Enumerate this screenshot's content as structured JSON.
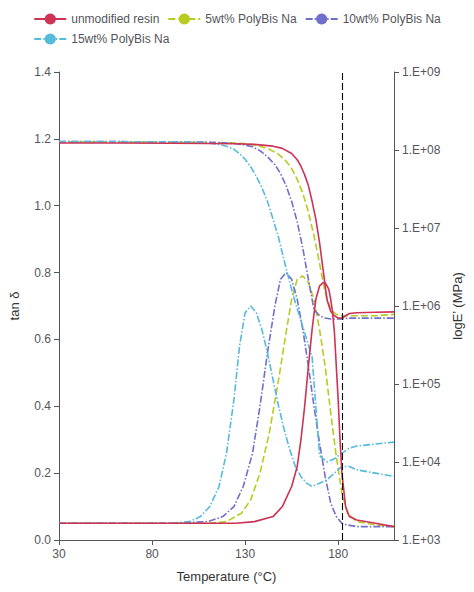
{
  "chart_data": {
    "type": "line",
    "xlabel": "Temperature (°C)",
    "ylabel": "tan δ",
    "y2label": "logE’ (MPa)",
    "xlim": [
      30,
      210
    ],
    "xticks": [
      30,
      80,
      130,
      180
    ],
    "ylim": [
      0.0,
      1.4
    ],
    "yticks": [
      {
        "value": 0,
        "label": "0.0"
      },
      0.2,
      0.4,
      0.6,
      0.8,
      {
        "value": 1,
        "label": "1.0"
      },
      1.2,
      1.4
    ],
    "y2lim": [
      1000,
      1000000000
    ],
    "y2ticks": [
      {
        "value": 1000,
        "label": "1.E+03"
      },
      {
        "value": 10000,
        "label": "1.E+04"
      },
      {
        "value": 100000,
        "label": "1.E+05"
      },
      {
        "value": 1000000,
        "label": "1.E+06"
      },
      {
        "value": 10000000,
        "label": "1.E+07"
      },
      {
        "value": 100000000,
        "label": "1.E+08"
      },
      {
        "value": 1000000000,
        "label": "1.E+09"
      }
    ],
    "log": "y2",
    "grid": false,
    "legend": "top",
    "reference_line": {
      "x": 182,
      "color": "#000000",
      "line_style": "dashed"
    },
    "series": [
      {
        "name": "unmodified resin",
        "color": "#cc3355",
        "line_style": "solid",
        "x": [
          30,
          60,
          90,
          110,
          125,
          135,
          145,
          150,
          155,
          158,
          160,
          162,
          164,
          166,
          168,
          170,
          172,
          173,
          174,
          175,
          176,
          177,
          178,
          179,
          180,
          181,
          182,
          184,
          186,
          190,
          200,
          210
        ],
        "values": [
          0.05,
          0.05,
          0.05,
          0.05,
          0.05,
          0.055,
          0.07,
          0.1,
          0.16,
          0.22,
          0.3,
          0.4,
          0.52,
          0.63,
          0.72,
          0.76,
          0.77,
          0.77,
          0.76,
          0.75,
          0.72,
          0.68,
          0.62,
          0.52,
          0.42,
          0.3,
          0.2,
          0.1,
          0.07,
          0.06,
          0.05,
          0.04
        ]
      },
      {
        "name": "unmodified resin",
        "color": "#cc3355",
        "line_style": "solid",
        "axis": "y2",
        "x": [
          30,
          60,
          90,
          110,
          125,
          135,
          145,
          150,
          155,
          158,
          160,
          162,
          164,
          166,
          168,
          170,
          172,
          174,
          176,
          178,
          180,
          182,
          184,
          186,
          190,
          200,
          210
        ],
        "values": [
          123000000.0,
          123000000.0,
          122000000.0,
          121000000.0,
          120000000.0,
          118000000.0,
          112000000.0,
          105000000.0,
          90000000.0,
          75000000.0,
          62000000.0,
          48000000.0,
          35000000.0,
          22000000.0,
          13000000.0,
          6500000.0,
          2800000.0,
          1200000.0,
          850000.0,
          750000.0,
          700000.0,
          700000.0,
          750000.0,
          800000.0,
          820000.0,
          830000.0,
          840000.0
        ]
      },
      {
        "name": "5wt% PolyBis Na",
        "color": "#b8cc20",
        "line_style": "dashed",
        "x": [
          30,
          60,
          90,
          110,
          120,
          128,
          133,
          138,
          143,
          148,
          152,
          155,
          158,
          161,
          164,
          167,
          170,
          173,
          176,
          179,
          182,
          185,
          190,
          200,
          210
        ],
        "values": [
          0.05,
          0.05,
          0.05,
          0.05,
          0.055,
          0.08,
          0.12,
          0.2,
          0.32,
          0.48,
          0.62,
          0.72,
          0.78,
          0.79,
          0.77,
          0.72,
          0.63,
          0.52,
          0.38,
          0.25,
          0.14,
          0.08,
          0.055,
          0.045,
          0.04
        ]
      },
      {
        "name": "5wt% PolyBis Na",
        "color": "#b8cc20",
        "line_style": "dashed",
        "axis": "y2",
        "x": [
          30,
          60,
          90,
          110,
          120,
          128,
          133,
          138,
          143,
          148,
          152,
          155,
          158,
          161,
          164,
          167,
          170,
          173,
          176,
          179,
          182,
          185,
          190,
          200,
          210
        ],
        "values": [
          127000000.0,
          127000000.0,
          126000000.0,
          125000000.0,
          124000000.0,
          122000000.0,
          118000000.0,
          112000000.0,
          102000000.0,
          88000000.0,
          72000000.0,
          58000000.0,
          42000000.0,
          28000000.0,
          16000000.0,
          8000000.0,
          3500000.0,
          1500000.0,
          900000.0,
          780000.0,
          750000.0,
          750000.0,
          750000.0,
          750000.0,
          780000.0
        ]
      },
      {
        "name": "10wt% PolyBis Na",
        "color": "#7070cc",
        "line_style": "dashdot",
        "x": [
          30,
          60,
          90,
          110,
          118,
          124,
          129,
          134,
          138,
          142,
          146,
          149,
          152,
          155,
          158,
          161,
          164,
          167,
          170,
          173,
          176,
          179,
          182,
          185,
          190,
          200,
          210
        ],
        "values": [
          0.05,
          0.05,
          0.05,
          0.055,
          0.07,
          0.1,
          0.16,
          0.26,
          0.4,
          0.56,
          0.7,
          0.78,
          0.8,
          0.78,
          0.72,
          0.63,
          0.52,
          0.4,
          0.29,
          0.19,
          0.11,
          0.07,
          0.05,
          0.045,
          0.04,
          0.04,
          0.04
        ]
      },
      {
        "name": "10wt% PolyBis Na",
        "color": "#7070cc",
        "line_style": "dashdot",
        "axis": "y2",
        "x": [
          30,
          60,
          90,
          110,
          118,
          124,
          129,
          134,
          138,
          142,
          146,
          149,
          152,
          155,
          158,
          161,
          164,
          167,
          170,
          173,
          176,
          179,
          182,
          185,
          190,
          200,
          210
        ],
        "values": [
          128000000.0,
          128000000.0,
          127000000.0,
          126000000.0,
          124000000.0,
          121000000.0,
          117000000.0,
          110000000.0,
          98000000.0,
          82000000.0,
          65000000.0,
          50000000.0,
          35000000.0,
          22000000.0,
          12000000.0,
          5500000.0,
          2200000.0,
          900000.0,
          750000.0,
          700000.0,
          680000.0,
          680000.0,
          680000.0,
          700000.0,
          700000.0,
          700000.0,
          700000.0
        ]
      },
      {
        "name": "15wt% PolyBis Na",
        "color": "#55bbdd",
        "line_style": "dashdot",
        "x": [
          30,
          60,
          90,
          100,
          106,
          111,
          116,
          120,
          124,
          127,
          130,
          133,
          136,
          139,
          142,
          145,
          148,
          151,
          154,
          157,
          160,
          163,
          166,
          170,
          174,
          178,
          182,
          186,
          190,
          200,
          210
        ],
        "values": [
          0.05,
          0.05,
          0.05,
          0.055,
          0.07,
          0.1,
          0.16,
          0.26,
          0.42,
          0.58,
          0.68,
          0.7,
          0.68,
          0.63,
          0.56,
          0.48,
          0.4,
          0.33,
          0.27,
          0.22,
          0.19,
          0.17,
          0.16,
          0.17,
          0.18,
          0.2,
          0.22,
          0.22,
          0.21,
          0.2,
          0.19
        ]
      },
      {
        "name": "15wt% PolyBis Na",
        "color": "#55bbdd",
        "line_style": "dashdot",
        "axis": "y2",
        "x": [
          30,
          60,
          90,
          100,
          106,
          111,
          116,
          120,
          124,
          127,
          130,
          133,
          136,
          139,
          142,
          145,
          148,
          151,
          154,
          157,
          160,
          163,
          166,
          170,
          174,
          178,
          182,
          186,
          190,
          200,
          210
        ],
        "values": [
          128000000.0,
          128000000.0,
          127000000.0,
          126000000.0,
          125000000.0,
          122000000.0,
          118000000.0,
          112000000.0,
          102000000.0,
          90000000.0,
          76000000.0,
          61000000.0,
          46000000.0,
          33000000.0,
          22000000.0,
          13000000.0,
          7500000.0,
          3800000.0,
          2000000.0,
          1100000.0,
          650000.0,
          380000.0,
          220000.0,
          12000.0,
          10000.0,
          11000.0,
          13000.0,
          15000.0,
          16000.0,
          17000.0,
          18000.0
        ]
      }
    ]
  }
}
